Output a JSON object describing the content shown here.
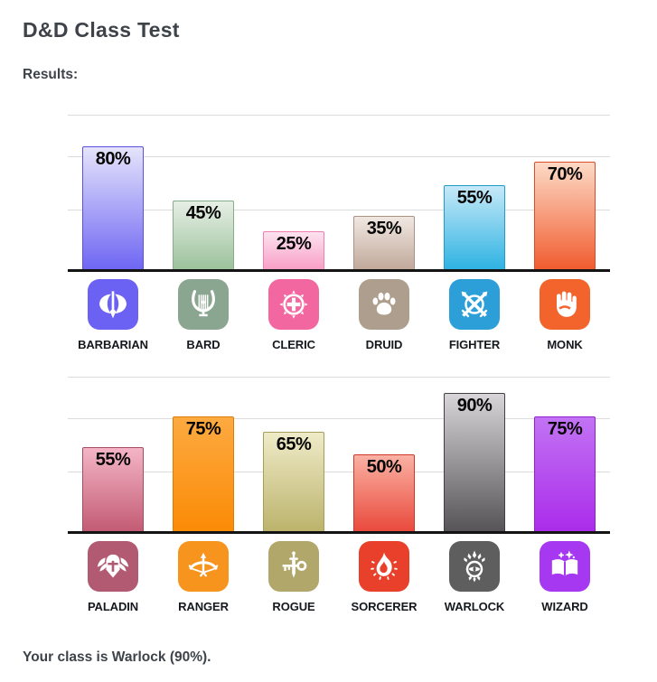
{
  "page": {
    "title": "D&D Class Test",
    "results_label": "Results:",
    "footer_text": "Your class is Warlock (90%)."
  },
  "chart_data": [
    {
      "type": "bar",
      "categories": [
        "BARBARIAN",
        "BARD",
        "CLERIC",
        "DRUID",
        "FIGHTER",
        "MONK"
      ],
      "values": [
        80,
        45,
        25,
        35,
        55,
        70
      ],
      "value_labels": [
        "80%",
        "45%",
        "25%",
        "35%",
        "55%",
        "70%"
      ],
      "ylim": [
        0,
        100
      ],
      "grid": true,
      "value_label_position": "inside-top"
    },
    {
      "type": "bar",
      "categories": [
        "PALADIN",
        "RANGER",
        "ROGUE",
        "SORCERER",
        "WARLOCK",
        "WIZARD"
      ],
      "values": [
        55,
        75,
        65,
        50,
        90,
        75
      ],
      "value_labels": [
        "55%",
        "75%",
        "65%",
        "50%",
        "90%",
        "75%"
      ],
      "ylim": [
        0,
        100
      ],
      "grid": true,
      "value_label_position": "inside-top"
    }
  ],
  "charts": [
    {
      "classes": [
        {
          "label": "BARBARIAN",
          "value": 80,
          "display": "80%",
          "icon": "double-axe-icon",
          "icon_bg": "#6b61f2",
          "bar_top": "#e5e4fb",
          "bar_bottom": "#6f66f3",
          "bar_border": "#5a51e0"
        },
        {
          "label": "BARD",
          "value": 45,
          "display": "45%",
          "icon": "lyre-icon",
          "icon_bg": "#8ba690",
          "bar_top": "#e7efe5",
          "bar_bottom": "#9bc29b",
          "bar_border": "#85ad87"
        },
        {
          "label": "CLERIC",
          "value": 25,
          "display": "25%",
          "icon": "holy-cross-icon",
          "icon_bg": "#f2679f",
          "bar_top": "#fce3f0",
          "bar_bottom": "#f99fc7",
          "bar_border": "#f07fb2"
        },
        {
          "label": "DRUID",
          "value": 35,
          "display": "35%",
          "icon": "paw-icon",
          "icon_bg": "#ae9e8d",
          "bar_top": "#f1e8e2",
          "bar_bottom": "#c1a99b",
          "bar_border": "#ab9284"
        },
        {
          "label": "FIGHTER",
          "value": 55,
          "display": "55%",
          "icon": "crossed-swords-icon",
          "icon_bg": "#2d9fd8",
          "bar_top": "#c6e9f8",
          "bar_bottom": "#2fb3e3",
          "bar_border": "#1f9cc9"
        },
        {
          "label": "MONK",
          "value": 70,
          "display": "70%",
          "icon": "fist-icon",
          "icon_bg": "#f2642c",
          "bar_top": "#fcdac6",
          "bar_bottom": "#f15c30",
          "bar_border": "#d94e26"
        }
      ]
    },
    {
      "classes": [
        {
          "label": "PALADIN",
          "value": 55,
          "display": "55%",
          "icon": "winged-helmet-icon",
          "icon_bg": "#b25a71",
          "bar_top": "#f4b5c6",
          "bar_bottom": "#c35b74",
          "bar_border": "#a84a62"
        },
        {
          "label": "RANGER",
          "value": 75,
          "display": "75%",
          "icon": "bow-arrow-icon",
          "icon_bg": "#f7941e",
          "bar_top": "#fcaa41",
          "bar_bottom": "#fb8b06",
          "bar_border": "#e07a00"
        },
        {
          "label": "ROGUE",
          "value": 65,
          "display": "65%",
          "icon": "dagger-key-icon",
          "icon_bg": "#b2a76b",
          "bar_top": "#efebc8",
          "bar_bottom": "#bcb36c",
          "bar_border": "#a69d58"
        },
        {
          "label": "SORCERER",
          "value": 50,
          "display": "50%",
          "icon": "flame-icon",
          "icon_bg": "#e8402b",
          "bar_top": "#fab1a4",
          "bar_bottom": "#e94a3c",
          "bar_border": "#d13728"
        },
        {
          "label": "WARLOCK",
          "value": 90,
          "display": "90%",
          "icon": "eye-leaves-icon",
          "icon_bg": "#5e5e5e",
          "bar_top": "#d7d5d7",
          "bar_bottom": "#575457",
          "bar_border": "#434043"
        },
        {
          "label": "WIZARD",
          "value": 75,
          "display": "75%",
          "icon": "spellbook-icon",
          "icon_bg": "#a638f2",
          "bar_top": "#c273f4",
          "bar_bottom": "#aa2cea",
          "bar_border": "#9320d0"
        }
      ]
    }
  ]
}
